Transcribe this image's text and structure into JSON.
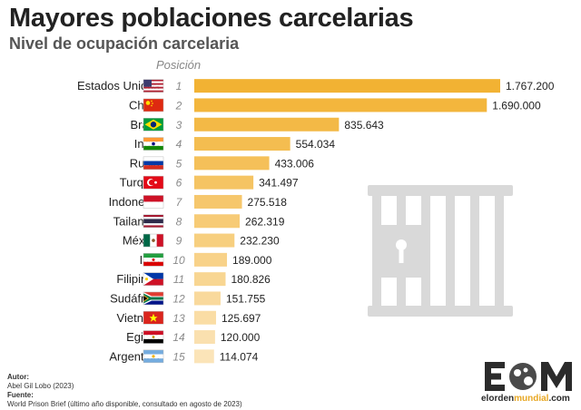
{
  "header": {
    "title": "Mayores poblaciones carcelarias",
    "subtitle": "Nivel de ocupación carcelaria",
    "position_label": "Posición"
  },
  "chart_data": {
    "type": "bar",
    "orientation": "horizontal",
    "title": "Mayores poblaciones carcelarias",
    "subtitle": "Nivel de ocupación carcelaria",
    "categories": [
      "Estados Unidos",
      "China",
      "Brasil",
      "India",
      "Rusia",
      "Turquía",
      "Indonesia",
      "Tailandia",
      "México",
      "Irán",
      "Filipinas",
      "Sudáfrica",
      "Vietnam",
      "Egipto",
      "Argentina"
    ],
    "ranks": [
      "1",
      "2",
      "3",
      "4",
      "5",
      "6",
      "7",
      "8",
      "9",
      "10",
      "11",
      "12",
      "13",
      "14",
      "15"
    ],
    "values": [
      1767200,
      1690000,
      835643,
      554034,
      433006,
      341497,
      275518,
      262319,
      232230,
      189000,
      180826,
      151755,
      125697,
      120000,
      114074
    ],
    "value_labels": [
      "1.767.200",
      "1.690.000",
      "835.643",
      "554.034",
      "433.006",
      "341.497",
      "275.518",
      "262.319",
      "232.230",
      "189.000",
      "180.826",
      "151.755",
      "125.697",
      "120.000",
      "114.074"
    ],
    "flags": [
      "usa-flag-icon",
      "china-flag-icon",
      "brazil-flag-icon",
      "india-flag-icon",
      "russia-flag-icon",
      "turkey-flag-icon",
      "indonesia-flag-icon",
      "thailand-flag-icon",
      "mexico-flag-icon",
      "iran-flag-icon",
      "philippines-flag-icon",
      "south-africa-flag-icon",
      "vietnam-flag-icon",
      "egypt-flag-icon",
      "argentina-flag-icon"
    ],
    "colors": {
      "bar_start": "#f2b233",
      "bar_end": "#fbe4b8",
      "prison_icon": "#d9d9d9"
    },
    "grid": false,
    "legend": "none"
  },
  "footer": {
    "author_label": "Autor:",
    "author": "Abel Gil Lobo (2023)",
    "source_label": "Fuente:",
    "source": "World Prison Brief (último año disponible, consultado en agosto de 2023)"
  },
  "logo": {
    "mark": "EOM",
    "text_start": "elorden",
    "text_accent": "mundial",
    "text_end": ".com"
  }
}
